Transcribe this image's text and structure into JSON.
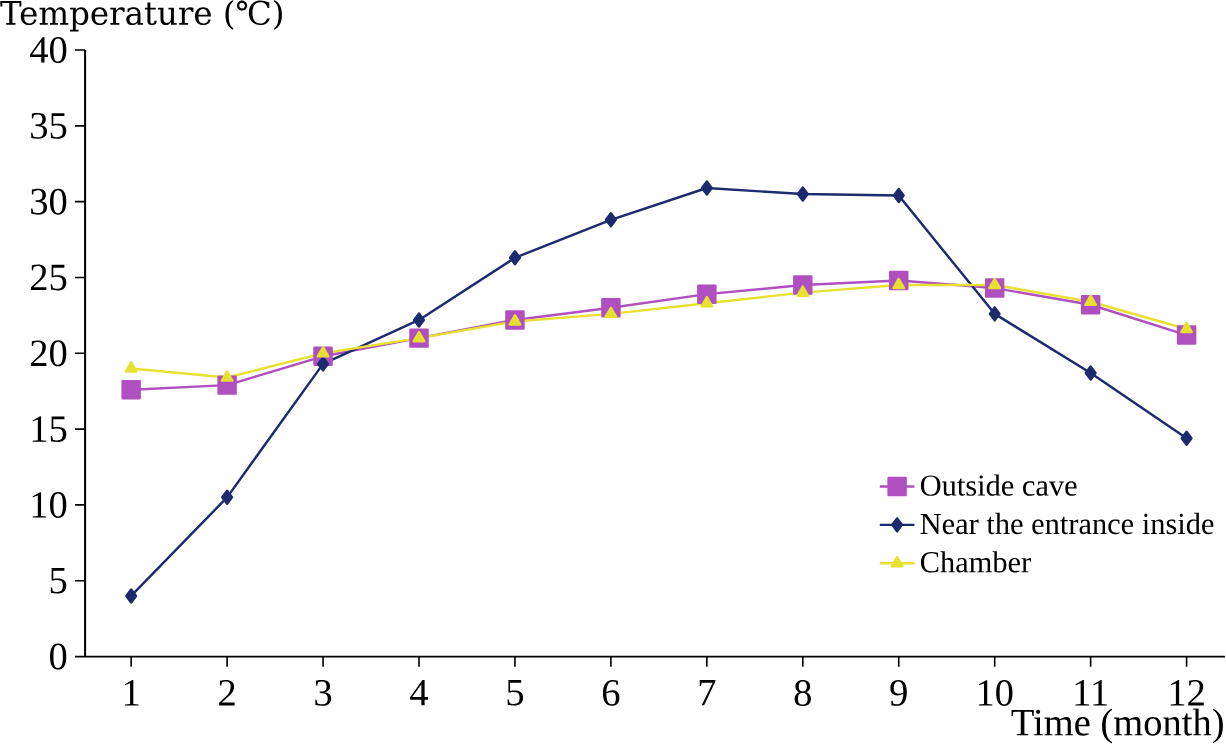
{
  "chart_data": {
    "type": "line",
    "ylabel": "Temperature (℃)",
    "xlabel": "Time (month)",
    "x": [
      1,
      2,
      3,
      4,
      5,
      6,
      7,
      8,
      9,
      10,
      11,
      12
    ],
    "xlim": [
      0.52,
      12.4
    ],
    "xticks": [
      1,
      2,
      3,
      4,
      5,
      6,
      7,
      8,
      9,
      10,
      11,
      12
    ],
    "ylim": [
      0,
      40
    ],
    "yticks": [
      0,
      5,
      10,
      15,
      20,
      25,
      30,
      35,
      40
    ],
    "legend": "right",
    "grid": false,
    "series": [
      {
        "name": "Outside cave",
        "color": "#b04fc0",
        "marker": "square",
        "values": [
          17.6,
          17.9,
          19.8,
          21.0,
          22.2,
          23.0,
          23.9,
          24.5,
          24.8,
          24.3,
          23.2,
          21.2
        ]
      },
      {
        "name": "Near the entrance inside",
        "color": "#1c2a6e",
        "marker": "diamond",
        "values": [
          4.0,
          10.5,
          19.3,
          22.2,
          26.3,
          28.8,
          30.9,
          30.5,
          30.4,
          22.6,
          18.7,
          14.4
        ]
      },
      {
        "name": "Chamber",
        "color": "#e8e030",
        "marker": "triangle",
        "values": [
          19.0,
          18.4,
          20.0,
          21.0,
          22.1,
          22.6,
          23.3,
          24.0,
          24.5,
          24.5,
          23.4,
          21.6
        ]
      }
    ]
  }
}
